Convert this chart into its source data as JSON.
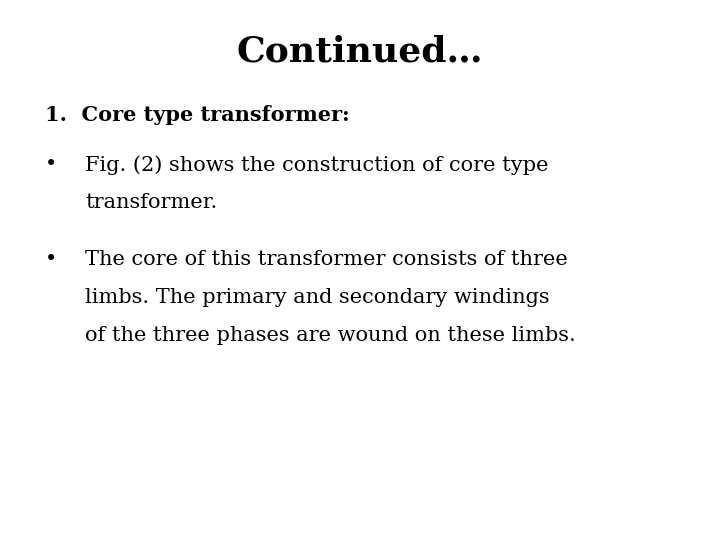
{
  "background_color": "#ffffff",
  "title": "Continued…",
  "title_fontsize": 26,
  "title_fontweight": "bold",
  "title_color": "#000000",
  "numbered_item": "1.  Core type transformer:",
  "numbered_fontsize": 15,
  "numbered_fontweight": "bold",
  "bullet1_line1": "Fig. (2) shows the construction of core type",
  "bullet1_line2": "transformer.",
  "bullet2_line1": "The core of this transformer consists of three",
  "bullet2_line2": "limbs. The primary and secondary windings",
  "bullet2_line3": "of the three phases are wound on these limbs.",
  "bullet_fontsize": 15,
  "bullet_fontweight": "normal",
  "text_color": "#000000",
  "bullet_symbol": "•",
  "font_family": "DejaVu Serif",
  "fig_width": 7.2,
  "fig_height": 5.4,
  "dpi": 100
}
